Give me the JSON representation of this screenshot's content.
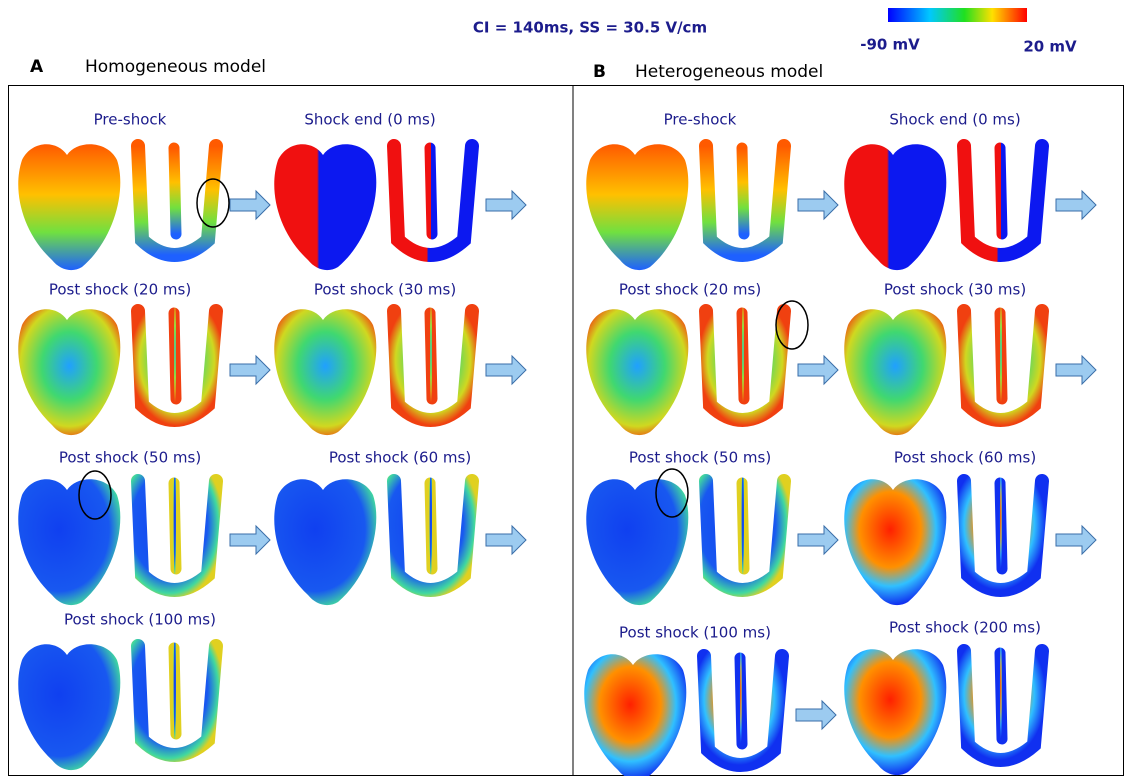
{
  "header": {
    "condition": "CI = 140ms,  SS = 30.5 V/cm",
    "colorbar": {
      "min_label": "-90 mV",
      "max_label": "20 mV"
    }
  },
  "panels": [
    {
      "label": "A",
      "title": "Homogeneous model",
      "frames": [
        {
          "caption": "Pre-shock"
        },
        {
          "caption": "Shock end (0 ms)"
        },
        {
          "caption": "Post shock (20 ms)"
        },
        {
          "caption": "Post shock (30 ms)"
        },
        {
          "caption": "Post shock (50 ms)"
        },
        {
          "caption": "Post shock (60 ms)"
        },
        {
          "caption": "Post shock (100 ms)"
        }
      ]
    },
    {
      "label": "B",
      "title": "Heterogeneous model",
      "frames": [
        {
          "caption": "Pre-shock"
        },
        {
          "caption": "Shock end (0 ms)"
        },
        {
          "caption": "Post shock (20 ms)"
        },
        {
          "caption": "Post shock (30 ms)"
        },
        {
          "caption": "Post shock (50 ms)"
        },
        {
          "caption": "Post shock (60 ms)"
        },
        {
          "caption": "Post shock (100 ms)"
        },
        {
          "caption": "Post shock (200 ms)"
        }
      ]
    }
  ]
}
